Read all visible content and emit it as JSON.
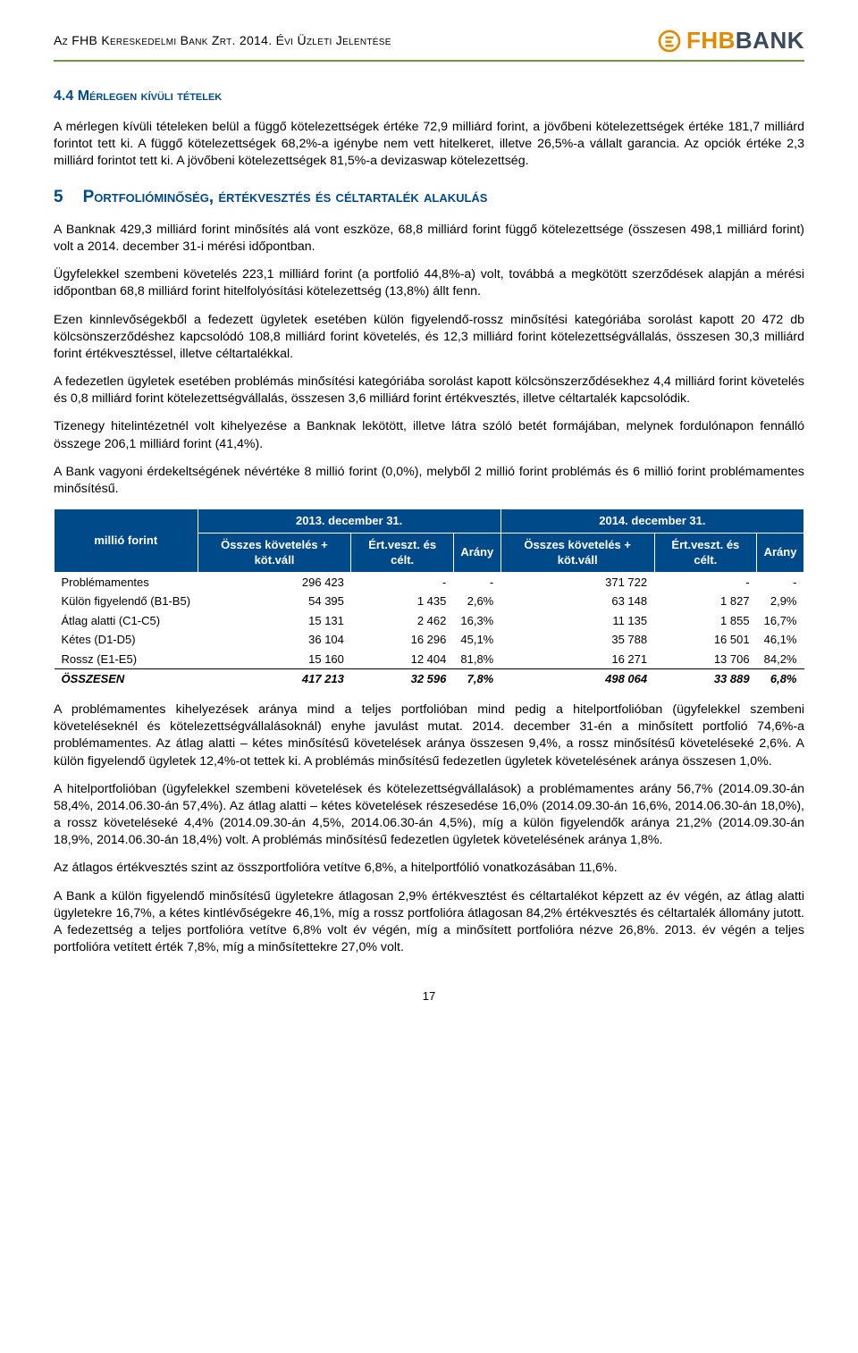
{
  "header": {
    "doc_title": "Az FHB Kereskedelmi Bank Zrt. 2014. Évi Üzleti Jelentése",
    "logo_fhb": "FHB",
    "logo_bank": "BANK"
  },
  "colors": {
    "accent_green": "#6a9a3a",
    "brand_orange": "#e08a00",
    "brand_dark": "#3a4a5a",
    "heading_blue": "#004a8a",
    "table_header_bg": "#004a8a",
    "table_header_fg": "#ffffff"
  },
  "sec44": {
    "title": "4.4 Mérlegen kívüli tételek",
    "p1": "A mérlegen kívüli tételeken belül a függő kötelezettségek értéke 72,9 milliárd forint, a jövőbeni kötelezettségek értéke 181,7 milliárd forintot tett ki. A függő kötelezettségek 68,2%-a igénybe nem vett hitelkeret, illetve 26,5%-a vállalt garancia. Az opciók értéke 2,3 milliárd forintot tett ki. A jövőbeni kötelezettségek 81,5%-a devizaswap kötelezettség."
  },
  "sec5": {
    "num": "5",
    "title": "Portfolióminőség, értékvesztés és céltartalék alakulás",
    "p1": "A Banknak 429,3 milliárd forint minősítés alá vont eszköze, 68,8 milliárd forint függő kötelezettsége (összesen 498,1 milliárd forint) volt a 2014. december 31-i mérési időpontban.",
    "p2": "Ügyfelekkel szembeni követelés 223,1 milliárd forint (a portfolió 44,8%-a) volt, továbbá a megkötött szerződések alapján a mérési időpontban 68,8 milliárd forint hitelfolyósítási kötelezettség (13,8%) állt fenn.",
    "p3": "Ezen kinnlevőségekből a fedezett ügyletek esetében külön figyelendő-rossz minősítési kategóriába sorolást kapott 20 472 db kölcsönszerződéshez kapcsolódó 108,8 milliárd forint követelés, és 12,3 milliárd forint kötelezettségvállalás, összesen 30,3 milliárd forint értékvesztéssel, illetve céltartalékkal.",
    "p4": "A fedezetlen ügyletek esetében problémás minősítési kategóriába sorolást kapott kölcsönszerződésekhez 4,4 milliárd forint követelés és 0,8 milliárd forint kötelezettségvállalás, összesen 3,6 milliárd forint értékvesztés, illetve céltartalék kapcsolódik.",
    "p5": "Tizenegy hitelintézetnél volt kihelyezése a Banknak lekötött, illetve látra szóló betét formájában, melynek fordulónapon fennálló összege 206,1 milliárd forint (41,4%).",
    "p6": "A Bank vagyoni érdekeltségének névértéke 8 millió forint (0,0%), melyből 2 millió forint problémás és 6 millió forint problémamentes minősítésű."
  },
  "table": {
    "unit_label": "millió forint",
    "group_2013": "2013. december 31.",
    "group_2014": "2014. december 31.",
    "col_total": "Összes követelés + köt.váll",
    "col_loss": "Ért.veszt. és célt.",
    "col_ratio": "Arány",
    "rows": [
      {
        "label": "Problémamentes",
        "a": "296 423",
        "b": "-",
        "c": "-",
        "d": "371 722",
        "e": "-",
        "f": "-"
      },
      {
        "label": "Külön figyelendő (B1-B5)",
        "a": "54 395",
        "b": "1 435",
        "c": "2,6%",
        "d": "63 148",
        "e": "1 827",
        "f": "2,9%"
      },
      {
        "label": "Átlag alatti (C1-C5)",
        "a": "15 131",
        "b": "2 462",
        "c": "16,3%",
        "d": "11 135",
        "e": "1 855",
        "f": "16,7%"
      },
      {
        "label": "Kétes (D1-D5)",
        "a": "36 104",
        "b": "16 296",
        "c": "45,1%",
        "d": "35 788",
        "e": "16 501",
        "f": "46,1%"
      },
      {
        "label": "Rossz (E1-E5)",
        "a": "15 160",
        "b": "12 404",
        "c": "81,8%",
        "d": "16 271",
        "e": "13 706",
        "f": "84,2%"
      }
    ],
    "total": {
      "label": "ÖSSZESEN",
      "a": "417 213",
      "b": "32 596",
      "c": "7,8%",
      "d": "498 064",
      "e": "33 889",
      "f": "6,8%"
    }
  },
  "after": {
    "p1": "A problémamentes kihelyezések aránya mind a teljes portfolióban mind pedig a hitelportfolióban (ügyfelekkel szembeni követeléseknél és kötelezettségvállalásoknál) enyhe javulást mutat. 2014. december 31-én a minősített portfolió 74,6%-a problémamentes. Az átlag alatti – kétes minősítésű követelések aránya összesen 9,4%, a rossz minősítésű követeléseké 2,6%. A külön figyelendő ügyletek 12,4%-ot tettek ki. A problémás minősítésű fedezetlen ügyletek követelésének aránya összesen 1,0%.",
    "p2": "A hitelportfolióban (ügyfelekkel szembeni követelések és kötelezettségvállalások) a problémamentes arány 56,7% (2014.09.30-án 58,4%, 2014.06.30-án 57,4%). Az átlag alatti – kétes követelések részesedése 16,0% (2014.09.30-án 16,6%, 2014.06.30-án 18,0%), a rossz követeléseké 4,4% (2014.09.30-án 4,5%, 2014.06.30-án 4,5%), míg a külön figyelendők aránya 21,2% (2014.09.30-án 18,9%, 2014.06.30-án 18,4%) volt. A problémás minősítésű fedezetlen ügyletek követelésének aránya 1,8%.",
    "p3": "Az átlagos értékvesztés szint az összportfolióra vetítve 6,8%, a hitelportfólió vonatkozásában 11,6%.",
    "p4": "A Bank a külön figyelendő minősítésű ügyletekre átlagosan 2,9% értékvesztést és céltartalékot képzett az év végén, az átlag alatti ügyletekre 16,7%, a kétes kintlévőségekre 46,1%, míg a rossz portfolióra átlagosan 84,2% értékvesztés és céltartalék állomány jutott. A fedezettség a teljes portfolióra vetítve 6,8% volt év végén, míg a minősített portfolióra nézve 26,8%. 2013. év végén a teljes portfolióra vetített érték 7,8%, míg a minősítettekre 27,0% volt."
  },
  "page_number": "17"
}
